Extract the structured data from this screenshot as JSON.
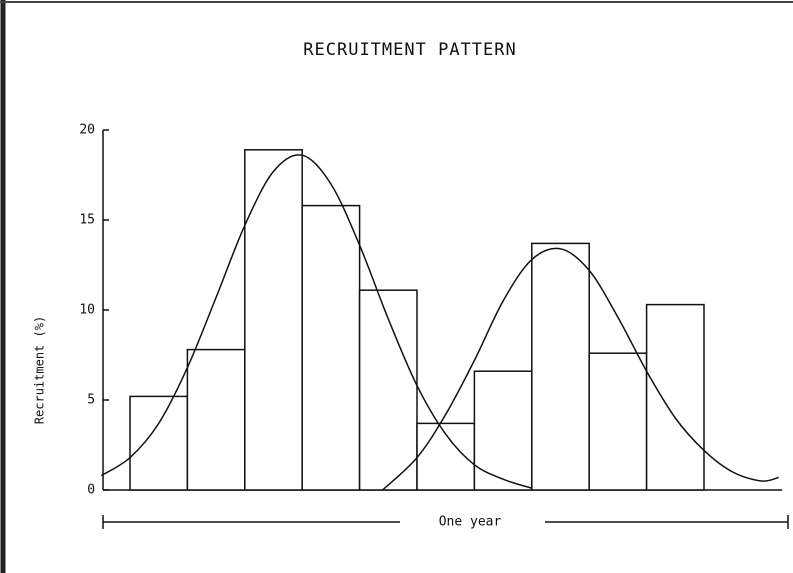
{
  "chart_data": {
    "type": "bar",
    "title": "RECRUITMENT PATTERN",
    "y_label": "Recruitment (%)",
    "annotation": "One year",
    "categories": [
      null,
      null,
      null,
      null,
      null,
      null,
      null,
      null,
      null,
      null
    ],
    "values": [
      5.2,
      7.8,
      18.9,
      15.8,
      11.1,
      3.7,
      6.6,
      13.7,
      7.6,
      10.3
    ],
    "color": "#ffffff",
    "ylim": [
      0,
      20
    ],
    "yticks": [
      0,
      5,
      10,
      15,
      20
    ],
    "xlim": [
      -0.47,
      11.5
    ],
    "curves": [
      {
        "x": [
          -0.5,
          0,
          0.5,
          1,
          1.5,
          2,
          2.5,
          3,
          3.5,
          4,
          4.5,
          5,
          5.5,
          6,
          6.5,
          7
        ],
        "values": [
          0.8,
          1.8,
          3.7,
          6.8,
          10.7,
          14.7,
          17.7,
          18.6,
          17.0,
          13.6,
          9.5,
          5.8,
          3.1,
          1.4,
          0.6,
          0.1
        ]
      },
      {
        "x": [
          4.4,
          5,
          5.5,
          6,
          6.5,
          7,
          7.5,
          8,
          8.5,
          9,
          9.5,
          10,
          10.5,
          11,
          11.3
        ],
        "values": [
          0,
          1.8,
          4.2,
          7.2,
          10.5,
          12.8,
          13.4,
          12.2,
          9.6,
          6.6,
          4.0,
          2.2,
          1.0,
          0.5,
          0.7
        ]
      }
    ]
  }
}
